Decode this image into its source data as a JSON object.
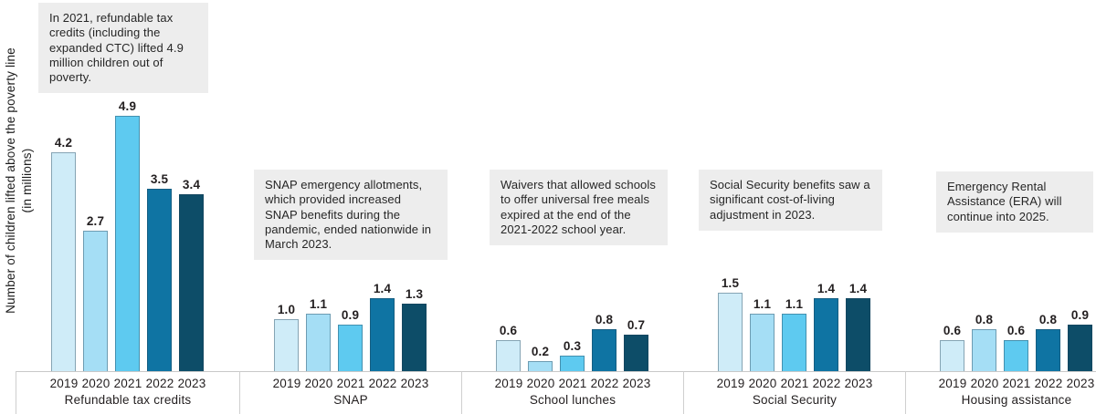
{
  "ylabel": {
    "line1": "Number of children lifted above the poverty line",
    "line2": "(in millions)"
  },
  "colors": {
    "bar_colors": [
      "#cfecf8",
      "#a5def5",
      "#5ecaf0",
      "#0f74a3",
      "#0d4d68"
    ],
    "annotation_bg": "#ededed",
    "axis_line": "#c8c8c8",
    "text": "#231f20"
  },
  "chart_data": {
    "type": "bar",
    "title": "",
    "ylabel": "Number of children lifted above the poverty line (in millions)",
    "categories": [
      "2019",
      "2020",
      "2021",
      "2022",
      "2023"
    ],
    "ylim": [
      0,
      5
    ],
    "grid": false,
    "value_labels": true,
    "legend": "none",
    "groups": [
      {
        "label": "Refundable tax credits",
        "values": [
          4.2,
          2.7,
          4.9,
          3.5,
          3.4
        ],
        "annotation": "In 2021, refundable tax credits (including the expanded CTC) lifted 4.9 million children out of poverty."
      },
      {
        "label": "SNAP",
        "values": [
          1.0,
          1.1,
          0.9,
          1.4,
          1.3
        ],
        "annotation": "SNAP emergency allotments, which provided increased SNAP benefits during the pandemic, ended nationwide in March 2023."
      },
      {
        "label": "School lunches",
        "values": [
          0.6,
          0.2,
          0.3,
          0.8,
          0.7
        ],
        "annotation": "Waivers that allowed schools to offer universal free meals expired at the end of the 2021-2022 school year."
      },
      {
        "label": "Social Security",
        "values": [
          1.5,
          1.1,
          1.1,
          1.4,
          1.4
        ],
        "annotation": "Social Security benefits saw a significant cost-of-living adjustment in 2023."
      },
      {
        "label": "Housing assistance",
        "values": [
          0.6,
          0.8,
          0.6,
          0.8,
          0.9
        ],
        "annotation": "Emergency Rental Assistance (ERA) will continue into 2025."
      }
    ]
  }
}
